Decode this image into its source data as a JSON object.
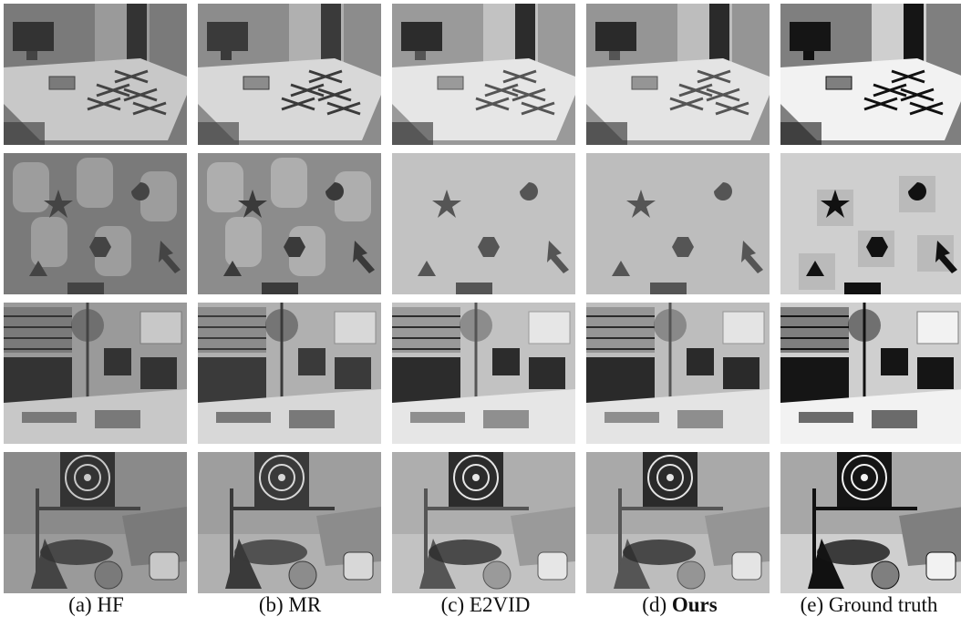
{
  "figure": {
    "columns": [
      {
        "id": "hf",
        "caption_prefix": "(a)",
        "caption_name": "HF",
        "bold": false
      },
      {
        "id": "mr",
        "caption_prefix": "(b)",
        "caption_name": "MR",
        "bold": false
      },
      {
        "id": "e2vid",
        "caption_prefix": "(c)",
        "caption_name": "E2VID",
        "bold": false
      },
      {
        "id": "ours",
        "caption_prefix": "(d)",
        "caption_name": "Ours",
        "bold": true
      },
      {
        "id": "gt",
        "caption_prefix": "(e)",
        "caption_name": "Ground truth",
        "bold": false
      }
    ],
    "rows": [
      {
        "scene": "desk-with-drones-and-monitor"
      },
      {
        "scene": "shapes-on-wall"
      },
      {
        "scene": "office-with-plant-and-monitors"
      },
      {
        "scene": "dartboard-table-and-ball"
      }
    ]
  }
}
